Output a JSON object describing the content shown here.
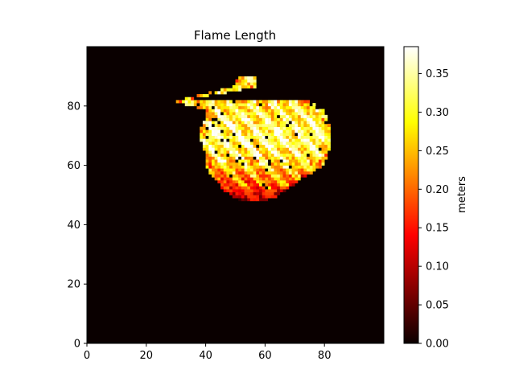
{
  "chart_data": {
    "type": "heatmap",
    "title": "Flame Length",
    "xlabel": "",
    "ylabel": "",
    "grid": false,
    "colormap": "hot",
    "grid_size": [
      100,
      100
    ],
    "xlim": [
      0,
      100
    ],
    "ylim": [
      0,
      100
    ],
    "x_ticks": [
      0,
      20,
      40,
      60,
      80
    ],
    "y_ticks": [
      0,
      20,
      40,
      60,
      80
    ],
    "colorbar": {
      "label": "meters",
      "range": [
        0.0,
        0.385
      ],
      "ticks": [
        "0.00",
        "0.05",
        "0.10",
        "0.15",
        "0.20",
        "0.25",
        "0.30",
        "0.35"
      ]
    },
    "background_value": 0.0,
    "burned_region": {
      "approx_x_extent": [
        30,
        81
      ],
      "approx_y_extent": [
        47,
        89
      ],
      "value_range": [
        0.05,
        0.385
      ],
      "note_rows": [
        {
          "y": 89,
          "x": [
            51,
            56
          ],
          "mean": 0.3
        },
        {
          "y": 86,
          "x": [
            49,
            56
          ],
          "mean": 0.3
        },
        {
          "y": 82,
          "x": [
            33,
            35
          ],
          "mean": 0.28
        },
        {
          "y": 81,
          "x": [
            30,
            74
          ],
          "mean": 0.28
        },
        {
          "y": 78,
          "x": [
            40,
            79
          ],
          "mean": 0.3
        },
        {
          "y": 75,
          "x": [
            40,
            80
          ],
          "mean": 0.31
        },
        {
          "y": 72,
          "x": [
            38,
            81
          ],
          "mean": 0.32
        },
        {
          "y": 69,
          "x": [
            38,
            81
          ],
          "mean": 0.32
        },
        {
          "y": 66,
          "x": [
            39,
            81
          ],
          "mean": 0.32
        },
        {
          "y": 63,
          "x": [
            40,
            80
          ],
          "mean": 0.3
        },
        {
          "y": 60,
          "x": [
            40,
            79
          ],
          "mean": 0.27
        },
        {
          "y": 57,
          "x": [
            41,
            75
          ],
          "mean": 0.24
        },
        {
          "y": 54,
          "x": [
            44,
            70
          ],
          "mean": 0.2
        },
        {
          "y": 51,
          "x": [
            46,
            66
          ],
          "mean": 0.16
        },
        {
          "y": 48,
          "x": [
            51,
            61
          ],
          "mean": 0.13
        }
      ]
    }
  }
}
